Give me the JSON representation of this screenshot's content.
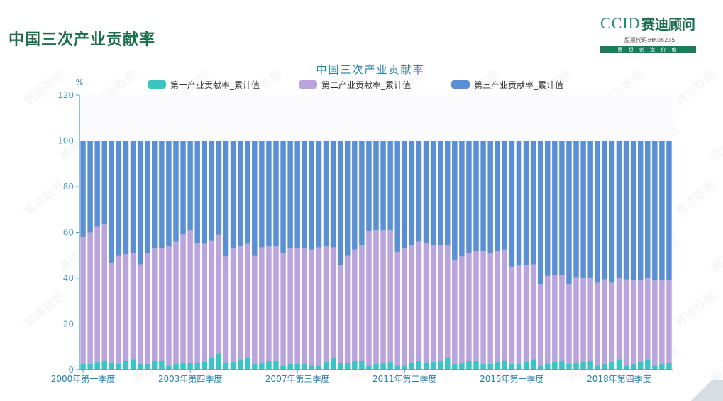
{
  "page": {
    "title": "中国三次产业贡献率",
    "logo": {
      "mark": "CCID",
      "name": "赛迪顾问",
      "stock_code": "股票代码:HK08235",
      "slogan": "思 想 创 造 价 值"
    },
    "watermark": "赛迪数据"
  },
  "chart_data": {
    "type": "stacked-bar",
    "title": "中国三次产业贡献率",
    "ylabel": "%",
    "ylim": [
      0,
      120
    ],
    "yticks": [
      0,
      20,
      40,
      60,
      80,
      100,
      120
    ],
    "xtick_labels": [
      {
        "index": 0,
        "label": "2000年第一季度"
      },
      {
        "index": 15,
        "label": "2003年第四季度"
      },
      {
        "index": 30,
        "label": "2007年第三季度"
      },
      {
        "index": 45,
        "label": "2011年第二季度"
      },
      {
        "index": 60,
        "label": "2015年第一季度"
      },
      {
        "index": 75,
        "label": "2018年第四季度"
      }
    ],
    "colors": {
      "primary": "#3cc4c2",
      "secondary": "#b9a5dc",
      "tertiary": "#5b8fd4",
      "axis": "#4a9fc9",
      "title": "#2a7faa"
    },
    "series": [
      {
        "name": "第一产业贡献率_累计值",
        "values": [
          2.5,
          2.5,
          3.5,
          4,
          3,
          2.5,
          4,
          4.5,
          2.5,
          2.5,
          4,
          4,
          2,
          2.5,
          3,
          3,
          3,
          3.5,
          5.5,
          7,
          3,
          3.5,
          4.5,
          5,
          2.5,
          3,
          4,
          4,
          2,
          2.5,
          2.5,
          2.5,
          2,
          2,
          3.5,
          5,
          3,
          3,
          4,
          4,
          2,
          2.5,
          3,
          3.5,
          2,
          2,
          3,
          4,
          3,
          3.5,
          4,
          5,
          2.5,
          3,
          4,
          4,
          2.5,
          2.5,
          3.5,
          4,
          2.5,
          2.5,
          3.5,
          4.5,
          2,
          2.5,
          3.5,
          4,
          2.5,
          3,
          3.5,
          4,
          2,
          2.5,
          3.5,
          4.5,
          2,
          2.5,
          3.5,
          4.5,
          2,
          2.5,
          3
        ]
      },
      {
        "name": "第二产业贡献率_累计值",
        "values": [
          55.5,
          57.5,
          59,
          59.5,
          43.5,
          47.5,
          46.5,
          46.5,
          43.5,
          48.5,
          49,
          49,
          52,
          53.5,
          56.5,
          58,
          52.5,
          51.5,
          51,
          52,
          46.5,
          49.5,
          49.5,
          50,
          47.5,
          50.5,
          50,
          50,
          49,
          50.5,
          50.5,
          50.5,
          50.5,
          51.5,
          50.5,
          48.5,
          42.5,
          47,
          48.5,
          50.5,
          58.5,
          58.5,
          58,
          57.5,
          49.5,
          51,
          51.5,
          52,
          52.5,
          51,
          50.5,
          49.5,
          45.5,
          46.5,
          47,
          48,
          49.5,
          48.5,
          48.5,
          48.5,
          42.5,
          43,
          42,
          41.5,
          35.5,
          38.5,
          38,
          37.5,
          35,
          37.5,
          36.5,
          36,
          36,
          37,
          34.5,
          35.5,
          37.5,
          36.5,
          35.5,
          35.5,
          37,
          36.5,
          36
        ]
      },
      {
        "name": "第三产业贡献率_累计值",
        "values": [
          42,
          40,
          37.5,
          36.5,
          53.5,
          50,
          49.5,
          49,
          54,
          49,
          47,
          47,
          46,
          44,
          40.5,
          39,
          44.5,
          45,
          43.5,
          41,
          50.5,
          47,
          46,
          45,
          50,
          46.5,
          46,
          46,
          49,
          47,
          47,
          47,
          47.5,
          46.5,
          46,
          46.5,
          54.5,
          50,
          47.5,
          45.5,
          39.5,
          39,
          39,
          39,
          48.5,
          47,
          45.5,
          44,
          44.5,
          45.5,
          45.5,
          45.5,
          52,
          50.5,
          49,
          48,
          48,
          49,
          48,
          47.5,
          55,
          54.5,
          54.5,
          54,
          62.5,
          59,
          58.5,
          58.5,
          62.5,
          59.5,
          60,
          60,
          62,
          60.5,
          62,
          60,
          60.5,
          61,
          61,
          60,
          61,
          61,
          61
        ]
      }
    ]
  }
}
